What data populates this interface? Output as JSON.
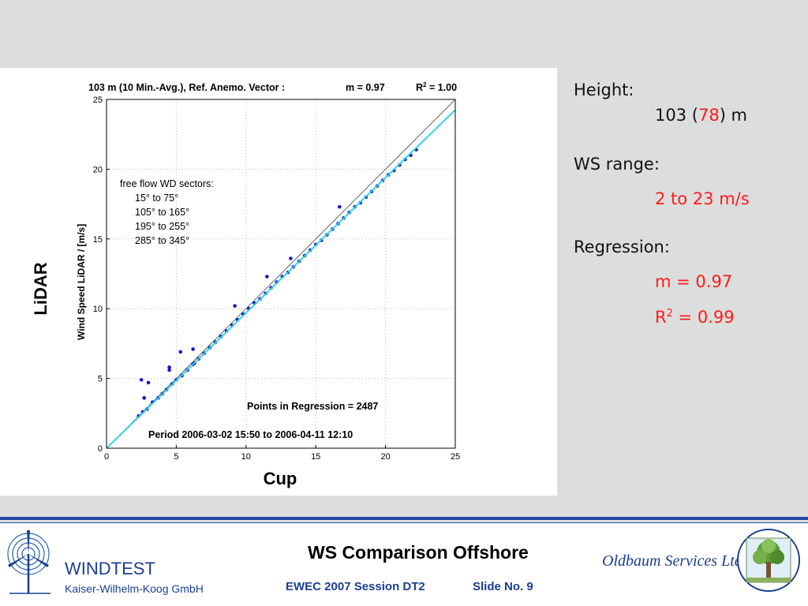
{
  "slide": {
    "title": "WS Comparison Offshore",
    "session": "EWEC 2007 Session DT2",
    "slide_no": "Slide No. 9"
  },
  "left_logo": {
    "name": "WINDTEST",
    "sub": "Kaiser-Wilhelm-Koog GmbH",
    "icon": "wind-turbine-icon"
  },
  "right_logo": {
    "name": "Oldbaum Services Ltd.",
    "icon": "tree-icon"
  },
  "side": {
    "height_label": "Height:",
    "height_value_prefix": "103 (",
    "height_value_red": "78",
    "height_value_suffix": ") m",
    "ws_range_label": "WS range:",
    "ws_range_value": "2 to 23 m/s",
    "regression_label": "Regression:",
    "m_value": "m = 0.97",
    "r2_prefix": "R",
    "r2_sup": "2",
    "r2_value": " = 0.99"
  },
  "colors": {
    "accent_red": "#ff1a1a",
    "brand_blue": "#1b3f8f",
    "points": "#1515c8",
    "fit_line": "#33d6e6"
  },
  "chart_data": {
    "type": "scatter",
    "title_left": "103 m (10 Min.-Avg.), Ref. Anemo. Vector :",
    "title_m": "m =   0.97",
    "title_r2_prefix": "R",
    "title_r2_sup": "2",
    "title_r2_value": " =   1.00",
    "xlabel": "Cup",
    "ylabel": "Wind Speed LiDAR / [m/s]",
    "outer_ylabel": "LiDAR",
    "xlim": [
      0,
      25
    ],
    "ylim": [
      0,
      25
    ],
    "xticks": [
      0,
      5,
      10,
      15,
      20,
      25
    ],
    "yticks": [
      0,
      5,
      10,
      15,
      20,
      25
    ],
    "grid": true,
    "legend_lines": [
      "free flow WD sectors:",
      "15° to 75°",
      "105° to 165°",
      "195° to 255°",
      "285° to 345°"
    ],
    "points_text": "Points in Regression = 2487",
    "period_text": "Period  2006-03-02 15:50  to  2006-04-11 12:10",
    "fit": {
      "slope": 0.97
    },
    "series": [
      {
        "x": [
          2.3,
          2.6,
          2.9,
          3.3,
          3.7,
          4.0,
          4.3,
          4.7,
          5.0,
          5.4,
          5.8,
          6.2,
          6.6,
          7.0,
          7.4,
          7.8,
          8.2,
          8.6,
          9.0,
          9.4,
          9.8,
          10.2,
          10.6,
          11.0,
          11.4,
          11.8,
          12.2,
          12.6,
          13.0,
          13.4,
          13.8,
          14.2,
          14.6,
          15.0,
          15.4,
          15.8,
          16.2,
          16.6,
          17.0,
          17.4,
          17.8,
          18.2,
          18.6,
          19.0,
          19.4,
          19.8,
          20.2,
          20.6,
          21.0,
          21.4,
          21.8,
          22.2,
          2.5,
          2.7,
          3.0,
          4.5,
          4.5,
          5.3,
          6.2,
          6.3,
          9.2,
          11.5,
          13.2,
          16.7
        ],
        "y": [
          2.3,
          2.6,
          2.8,
          3.3,
          3.6,
          3.9,
          4.2,
          4.6,
          4.9,
          5.2,
          5.6,
          6.0,
          6.4,
          6.8,
          7.2,
          7.6,
          8.0,
          8.4,
          8.8,
          9.2,
          9.6,
          10.0,
          10.4,
          10.7,
          11.1,
          11.5,
          11.9,
          12.3,
          12.6,
          13.0,
          13.4,
          13.8,
          14.2,
          14.6,
          14.9,
          15.3,
          15.7,
          16.1,
          16.5,
          16.9,
          17.3,
          17.6,
          18.0,
          18.4,
          18.8,
          19.2,
          19.6,
          19.9,
          20.3,
          20.7,
          21.0,
          21.4,
          4.9,
          3.6,
          4.7,
          5.8,
          5.6,
          6.9,
          7.1,
          6.1,
          10.2,
          12.3,
          13.6,
          17.3
        ]
      }
    ]
  }
}
